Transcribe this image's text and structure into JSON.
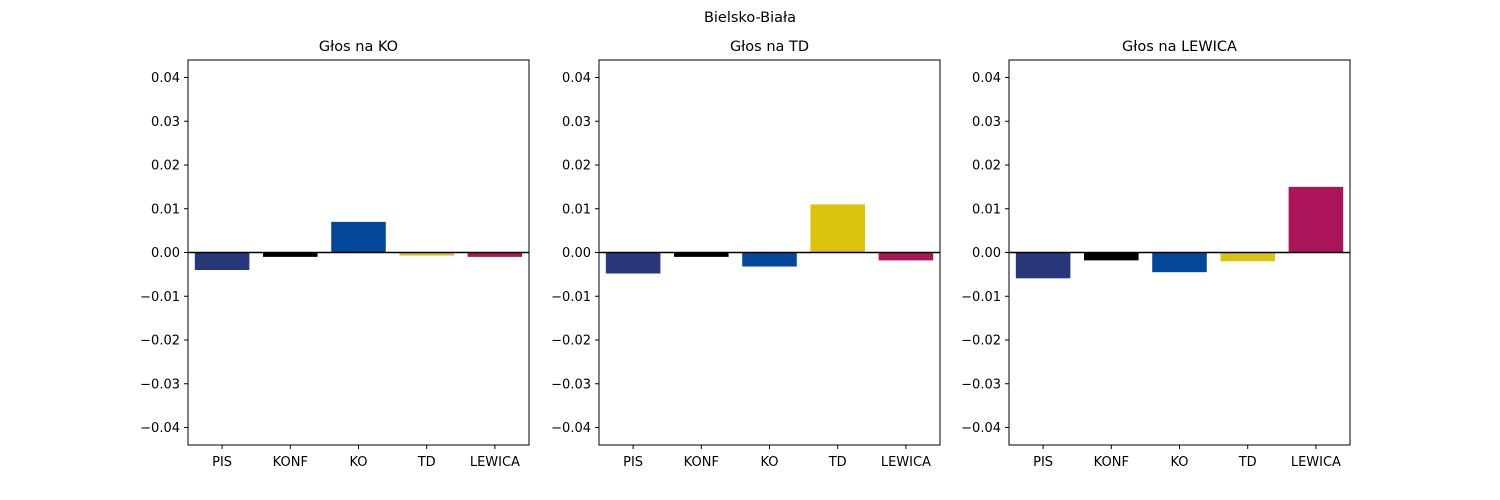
{
  "figure": {
    "suptitle": "Bielsko-Biała"
  },
  "chart_data": [
    {
      "type": "bar",
      "title": "Głos na KO",
      "categories": [
        "PIS",
        "KONF",
        "KO",
        "TD",
        "LEWICA"
      ],
      "values": [
        -0.004,
        -0.001,
        0.007,
        -0.0007,
        -0.001
      ],
      "colors": [
        "#283779",
        "#000000",
        "#02479A",
        "#DCC30E",
        "#AB1459"
      ],
      "ylim": [
        -0.044,
        0.044
      ],
      "yticks": [
        -0.04,
        -0.03,
        -0.02,
        -0.01,
        0.0,
        0.01,
        0.02,
        0.03,
        0.04
      ],
      "ytick_labels": [
        "−0.04",
        "−0.03",
        "−0.02",
        "−0.01",
        "0.00",
        "0.01",
        "0.02",
        "0.03",
        "0.04"
      ],
      "zero_line": true,
      "grid": false
    },
    {
      "type": "bar",
      "title": "Głos na TD",
      "categories": [
        "PIS",
        "KONF",
        "KO",
        "TD",
        "LEWICA"
      ],
      "values": [
        -0.0048,
        -0.001,
        -0.0032,
        0.011,
        -0.0018
      ],
      "colors": [
        "#283779",
        "#000000",
        "#02479A",
        "#DCC30E",
        "#AB1459"
      ],
      "ylim": [
        -0.044,
        0.044
      ],
      "yticks": [
        -0.04,
        -0.03,
        -0.02,
        -0.01,
        0.0,
        0.01,
        0.02,
        0.03,
        0.04
      ],
      "ytick_labels": [
        "−0.04",
        "−0.03",
        "−0.02",
        "−0.01",
        "0.00",
        "0.01",
        "0.02",
        "0.03",
        "0.04"
      ],
      "zero_line": true,
      "grid": false
    },
    {
      "type": "bar",
      "title": "Głos na LEWICA",
      "categories": [
        "PIS",
        "KONF",
        "KO",
        "TD",
        "LEWICA"
      ],
      "values": [
        -0.0059,
        -0.0018,
        -0.0045,
        -0.002,
        0.015
      ],
      "colors": [
        "#283779",
        "#000000",
        "#02479A",
        "#DCC30E",
        "#AB1459"
      ],
      "ylim": [
        -0.044,
        0.044
      ],
      "yticks": [
        -0.04,
        -0.03,
        -0.02,
        -0.01,
        0.0,
        0.01,
        0.02,
        0.03,
        0.04
      ],
      "ytick_labels": [
        "−0.04",
        "−0.03",
        "−0.02",
        "−0.01",
        "0.00",
        "0.01",
        "0.02",
        "0.03",
        "0.04"
      ],
      "zero_line": true,
      "grid": false
    }
  ]
}
